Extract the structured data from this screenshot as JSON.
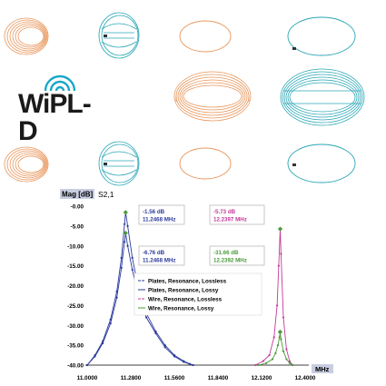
{
  "logo": {
    "text": "WiPL-D",
    "arc_colors": [
      "#1aa7c9",
      "#1aa7c9",
      "#1aa7c9"
    ]
  },
  "colors": {
    "orange_model": "#e8955a",
    "teal_model": "#2aa6b6",
    "curve_blue": "#2b3a9a",
    "curve_pink": "#c23a9a",
    "curve_green": "#4a9a3a",
    "marker_box": "#b0b0b0"
  },
  "chart_data": {
    "type": "line",
    "title": "",
    "ylabel_badge": "Mag [dB]",
    "param_label": "S2,1",
    "xlabel": "MHz",
    "xlim": [
      11.0,
      12.4
    ],
    "ylim": [
      -40,
      0
    ],
    "x_ticks": [
      "11.0000",
      "11.2800",
      "11.5600",
      "11.8400",
      "12.1200",
      "12.4000"
    ],
    "y_ticks": [
      "-0.00",
      "-5.00",
      "-10.00",
      "-15.00",
      "-20.00",
      "-25.00",
      "-30.00",
      "-35.00",
      "-40.00"
    ],
    "grid": false,
    "legend": [
      "Plates, Resonance, Lossless",
      "Plates, Resonance, Lossy",
      "Wire, Resonance, Lossless",
      "Wire, Resonance, Lossy"
    ],
    "markers": [
      {
        "db": "-1.56 dB",
        "freq": "11.2468 MHz"
      },
      {
        "db": "-5.73 dB",
        "freq": "12.2397 MHz"
      },
      {
        "db": "-6.76 dB",
        "freq": "11.2468 MHz"
      },
      {
        "db": "-31.66 dB",
        "freq": "12.2392 MHz"
      }
    ],
    "series": [
      {
        "color": "#2b3a9a",
        "x": [
          11.0,
          11.05,
          11.1,
          11.15,
          11.19,
          11.22,
          11.24,
          11.2468,
          11.26,
          11.29,
          11.33,
          11.38,
          11.44,
          11.5,
          11.56,
          11.62,
          11.66,
          11.68
        ],
        "y": [
          -40,
          -37.5,
          -34,
          -28.5,
          -21.5,
          -13,
          -4.5,
          -1.56,
          -5,
          -13,
          -21,
          -27,
          -31.5,
          -35,
          -37.5,
          -39,
          -39.7,
          -40
        ]
      },
      {
        "color": "#2b3a9a",
        "x": [
          11.0,
          11.05,
          11.1,
          11.15,
          11.19,
          11.22,
          11.24,
          11.2468,
          11.26,
          11.29,
          11.33,
          11.38,
          11.44,
          11.5,
          11.56,
          11.62,
          11.66,
          11.68
        ],
        "y": [
          -40,
          -37.8,
          -34.5,
          -29.5,
          -23,
          -15.5,
          -9,
          -6.76,
          -10,
          -16,
          -22.5,
          -28,
          -32,
          -35.5,
          -37.8,
          -39.2,
          -39.8,
          -40
        ]
      },
      {
        "color": "#c23a9a",
        "x": [
          12.08,
          12.13,
          12.17,
          12.2,
          12.22,
          12.23,
          12.2397,
          12.245,
          12.26,
          12.28,
          12.3,
          12.32
        ],
        "y": [
          -40,
          -39,
          -37.5,
          -33,
          -25,
          -15,
          -5.73,
          -12,
          -28,
          -36,
          -39,
          -40
        ]
      },
      {
        "color": "#4a9a3a",
        "x": [
          12.1,
          12.15,
          12.19,
          12.21,
          12.225,
          12.235,
          12.2392,
          12.245,
          12.26,
          12.28,
          12.3,
          12.32
        ],
        "y": [
          -40,
          -39.5,
          -38.5,
          -37,
          -35,
          -33,
          -31.66,
          -33.5,
          -36.5,
          -38.5,
          -39.5,
          -40
        ]
      }
    ]
  }
}
